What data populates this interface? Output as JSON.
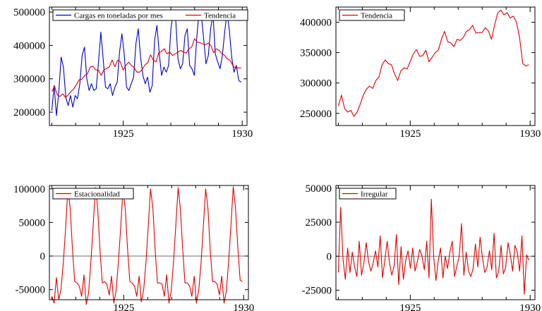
{
  "chart_data": [
    {
      "type": "line",
      "title": "",
      "xlabel": "",
      "ylabel": "",
      "xlim": [
        1921.9,
        1930.2
      ],
      "ylim": [
        160000,
        515000
      ],
      "x_ticks": [
        1925,
        1930
      ],
      "y_ticks": [
        200000,
        300000,
        400000,
        500000
      ],
      "legend_position": "top",
      "series": [
        {
          "name": "Cargas en toneladas por mes",
          "color": "#0000cc",
          "values": [
            205000,
            280000,
            190000,
            260000,
            365000,
            335000,
            245000,
            220000,
            250000,
            215000,
            250000,
            240000,
            285000,
            370000,
            395000,
            300000,
            265000,
            285000,
            265000,
            270000,
            350000,
            440000,
            360000,
            275000,
            270000,
            285000,
            250000,
            275000,
            290000,
            380000,
            435000,
            375000,
            275000,
            265000,
            285000,
            305000,
            405000,
            450000,
            365000,
            310000,
            285000,
            305000,
            260000,
            280000,
            415000,
            460000,
            375000,
            310000,
            335000,
            320000,
            340000,
            450000,
            500000,
            480000,
            360000,
            330000,
            345000,
            430000,
            450000,
            340000,
            330000,
            310000,
            420000,
            500000,
            490000,
            420000,
            345000,
            370000,
            450000,
            495000,
            375000,
            350000,
            330000,
            370000,
            440000,
            500000,
            445000,
            365000,
            320000,
            340000,
            295000,
            290000
          ]
        },
        {
          "name": "Tendencia",
          "color": "#e00000",
          "values": [
            262000,
            278000,
            252000,
            247000,
            255000,
            244000,
            252000,
            262000,
            270000,
            283000,
            297000,
            299000,
            310000,
            315000,
            335000,
            338000,
            327000,
            326000,
            310000,
            327000,
            331000,
            336000,
            356000,
            336000,
            356000,
            351000,
            326000,
            340000,
            350000,
            340000,
            334000,
            320000,
            320000,
            328000,
            342000,
            348000,
            372000,
            356000,
            350000,
            378000,
            382000,
            390000,
            375000,
            380000,
            370000,
            375000,
            380000,
            385000,
            380000,
            377000,
            390000,
            395000,
            420000,
            410000,
            408000,
            405000,
            402000,
            407000,
            400000,
            378000,
            390000,
            385000,
            375000,
            370000,
            360000,
            355000,
            340000,
            332000,
            333000,
            332000
          ]
        }
      ]
    },
    {
      "type": "line",
      "title": "",
      "xlabel": "",
      "ylabel": "",
      "xlim": [
        1921.9,
        1930.2
      ],
      "ylim": [
        230000,
        425000
      ],
      "x_ticks": [
        1925,
        1930
      ],
      "y_ticks": [
        250000,
        300000,
        350000,
        400000
      ],
      "legend_position": "top-left",
      "series": [
        {
          "name": "Tendencia",
          "color": "#e00000",
          "values": [
            262000,
            280000,
            258000,
            252000,
            255000,
            245000,
            252000,
            265000,
            280000,
            290000,
            295000,
            291000,
            304000,
            310000,
            330000,
            338000,
            332000,
            330000,
            315000,
            304000,
            320000,
            325000,
            323000,
            335000,
            348000,
            355000,
            344000,
            345000,
            354000,
            335000,
            342000,
            350000,
            354000,
            372000,
            385000,
            368000,
            366000,
            360000,
            372000,
            370000,
            375000,
            385000,
            388000,
            395000,
            382000,
            383000,
            383000,
            391000,
            386000,
            372000,
            395000,
            415000,
            420000,
            412000,
            416000,
            407000,
            410000,
            400000,
            375000,
            332000,
            328000,
            330000
          ]
        }
      ]
    },
    {
      "type": "line",
      "title": "",
      "xlabel": "",
      "ylabel": "",
      "xlim": [
        1921.9,
        1930.2
      ],
      "ylim": [
        -65000,
        105000
      ],
      "x_ticks": [
        1925,
        1930
      ],
      "y_ticks": [
        -50000,
        0,
        50000,
        100000
      ],
      "zero_line": true,
      "legend_position": "top-left",
      "series": [
        {
          "name": "Estacionalidad",
          "color": "#e00000",
          "values": [
            -60000,
            -70000,
            -32000,
            -65000,
            -50000,
            -10000,
            40000,
            100000,
            72000,
            10000,
            -38000,
            -40000,
            -45000,
            -60000,
            -28000,
            -72000,
            -55000,
            -10000,
            45000,
            102000,
            70000,
            8000,
            -40000,
            -38000,
            -42000,
            -58000,
            -30000,
            -70000,
            -52000,
            -8000,
            42000,
            100000,
            70000,
            10000,
            -38000,
            -40000,
            -45000,
            -60000,
            -30000,
            -68000,
            -50000,
            -10000,
            45000,
            100000,
            72000,
            10000,
            -40000,
            -40000,
            -42000,
            -60000,
            -28000,
            -70000,
            -52000,
            -8000,
            45000,
            102000,
            70000,
            10000,
            -40000,
            -40000,
            -45000,
            -60000,
            -30000,
            -70000,
            -50000,
            -10000,
            45000,
            100000,
            70000,
            8000,
            -38000,
            -38000,
            -42000,
            -58000,
            -30000,
            -70000,
            -52000,
            -8000,
            45000,
            103000,
            72000,
            12000,
            -36000,
            -38000
          ]
        }
      ]
    },
    {
      "type": "line",
      "title": "",
      "xlabel": "",
      "ylabel": "",
      "xlim": [
        1921.9,
        1930.2
      ],
      "ylim": [
        -32000,
        52000
      ],
      "x_ticks": [
        1925,
        1930
      ],
      "y_ticks": [
        -25000,
        0,
        25000,
        50000
      ],
      "zero_line": true,
      "legend_position": "top-left",
      "series": [
        {
          "name": "Irregular",
          "color": "#e00000",
          "values": [
            -12000,
            36000,
            -2000,
            -17000,
            6000,
            -12000,
            3000,
            -8000,
            -15000,
            11000,
            -14000,
            -5000,
            10000,
            -4000,
            -11000,
            -5000,
            4000,
            -8000,
            15000,
            -16000,
            -3000,
            11000,
            -5000,
            -14000,
            -7000,
            16000,
            -21000,
            7000,
            -17000,
            -3000,
            4000,
            -9000,
            6000,
            -11000,
            -4000,
            5000,
            0,
            -10000,
            11000,
            -16000,
            42000,
            0,
            -18000,
            -3000,
            6000,
            -16000,
            0,
            -9000,
            3000,
            11000,
            -15000,
            -7000,
            0,
            24000,
            -14000,
            3000,
            -11000,
            -15000,
            -9000,
            9000,
            -8000,
            14000,
            -1000,
            -12000,
            -8000,
            4000,
            -10000,
            17000,
            -16000,
            -11000,
            8000,
            -13000,
            -8000,
            10000,
            1000,
            -11000,
            8000,
            3000,
            -11000,
            15000,
            -28000,
            1000,
            -3000
          ]
        }
      ]
    }
  ]
}
